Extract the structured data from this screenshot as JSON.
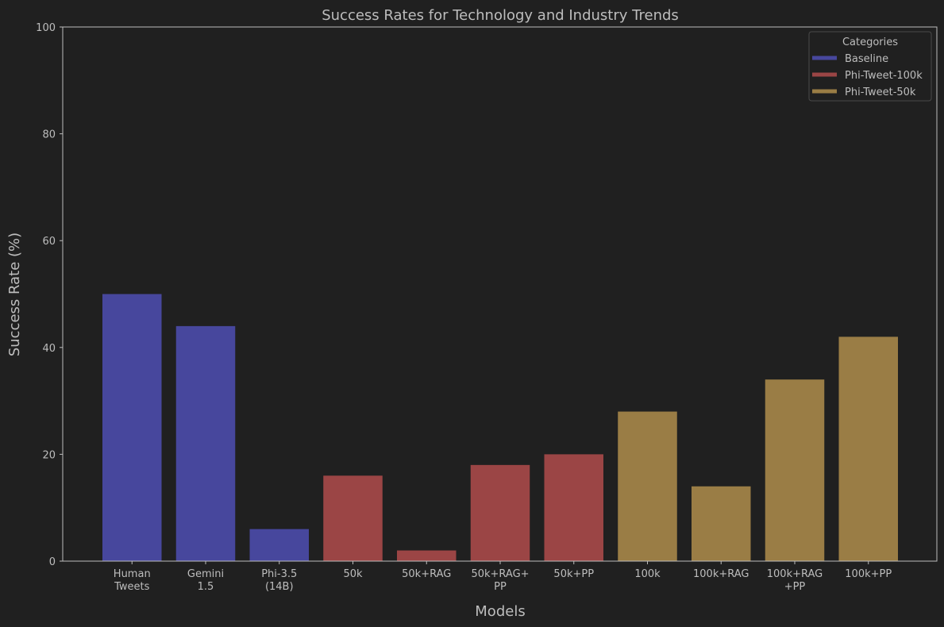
{
  "chart_data": {
    "type": "bar",
    "title": "Success Rates for Technology and Industry Trends",
    "xlabel": "Models",
    "ylabel": "Success Rate (%)",
    "ylim": [
      0,
      100
    ],
    "yticks": [
      0,
      20,
      40,
      60,
      80,
      100
    ],
    "grid": false,
    "legend": {
      "title": "Categories",
      "placement": "top-right",
      "entries": [
        {
          "label": "Baseline",
          "color": "#47479d"
        },
        {
          "label": "Phi-Tweet-100k",
          "color": "#9b4545"
        },
        {
          "label": "Phi-Tweet-50k",
          "color": "#9a7d45"
        }
      ]
    },
    "bars": [
      {
        "label": [
          "Human",
          "Tweets"
        ],
        "value": 50,
        "category": 0
      },
      {
        "label": [
          "Gemini",
          "1.5"
        ],
        "value": 44,
        "category": 0
      },
      {
        "label": [
          "Phi-3.5",
          "(14B)"
        ],
        "value": 6,
        "category": 0
      },
      {
        "label": [
          "50k"
        ],
        "value": 16,
        "category": 1
      },
      {
        "label": [
          "50k+RAG"
        ],
        "value": 2,
        "category": 1
      },
      {
        "label": [
          "50k+RAG+",
          "PP"
        ],
        "value": 18,
        "category": 1
      },
      {
        "label": [
          "50k+PP"
        ],
        "value": 20,
        "category": 1
      },
      {
        "label": [
          "100k"
        ],
        "value": 28,
        "category": 2
      },
      {
        "label": [
          "100k+RAG"
        ],
        "value": 14,
        "category": 2
      },
      {
        "label": [
          "100k+RAG",
          "+PP"
        ],
        "value": 34,
        "category": 2
      },
      {
        "label": [
          "100k+PP"
        ],
        "value": 42,
        "category": 2
      }
    ]
  },
  "colors": {
    "background": "#202020",
    "axis": "#bdbdbd",
    "text": "#bdbdbd"
  }
}
